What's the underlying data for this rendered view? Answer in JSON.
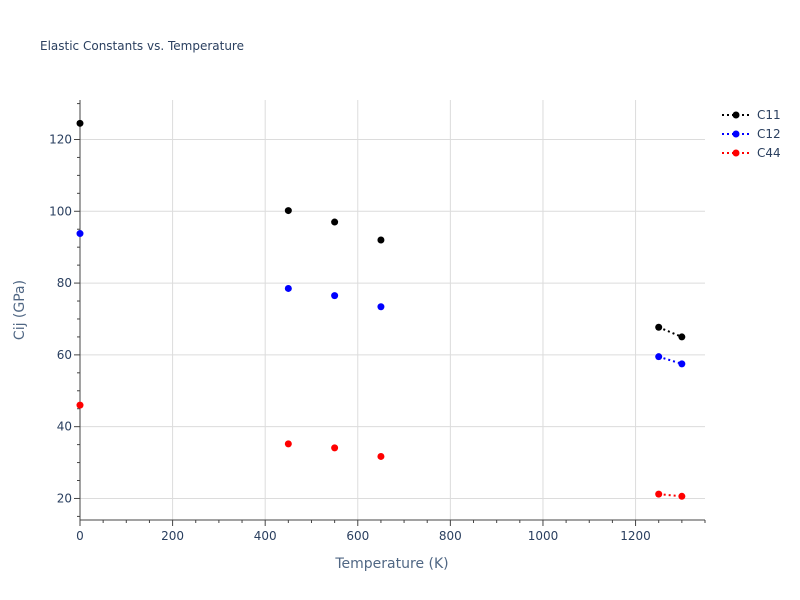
{
  "chart_data": {
    "type": "scatter",
    "title": "Elastic Constants vs. Temperature",
    "xlabel": "Temperature (K)",
    "ylabel": "Cij (GPa)",
    "xlim": [
      0,
      1350
    ],
    "ylim": [
      14,
      131
    ],
    "xticks": [
      0,
      200,
      400,
      600,
      800,
      1000,
      1200
    ],
    "yticks": [
      20,
      40,
      60,
      80,
      100,
      120
    ],
    "grid": true,
    "legend_position": "top-right",
    "series": [
      {
        "name": "C11",
        "color": "#000000",
        "points": [
          [
            0,
            124.5
          ],
          [
            450,
            100.2
          ],
          [
            550,
            97
          ],
          [
            650,
            92
          ],
          [
            1250,
            67.7
          ],
          [
            1300,
            65
          ]
        ],
        "connected_segments": [
          [
            1250,
            1300
          ]
        ]
      },
      {
        "name": "C12",
        "color": "#0000ff",
        "points": [
          [
            0,
            93.8
          ],
          [
            450,
            78.5
          ],
          [
            550,
            76.5
          ],
          [
            650,
            73.4
          ],
          [
            1250,
            59.5
          ],
          [
            1300,
            57.5
          ]
        ],
        "connected_segments": [
          [
            1250,
            1300
          ]
        ]
      },
      {
        "name": "C44",
        "color": "#ff0000",
        "points": [
          [
            0,
            46
          ],
          [
            450,
            35.2
          ],
          [
            550,
            34.1
          ],
          [
            650,
            31.7
          ],
          [
            1250,
            21.2
          ],
          [
            1300,
            20.6
          ]
        ],
        "connected_segments": [
          [
            1250,
            1300
          ]
        ]
      }
    ]
  }
}
